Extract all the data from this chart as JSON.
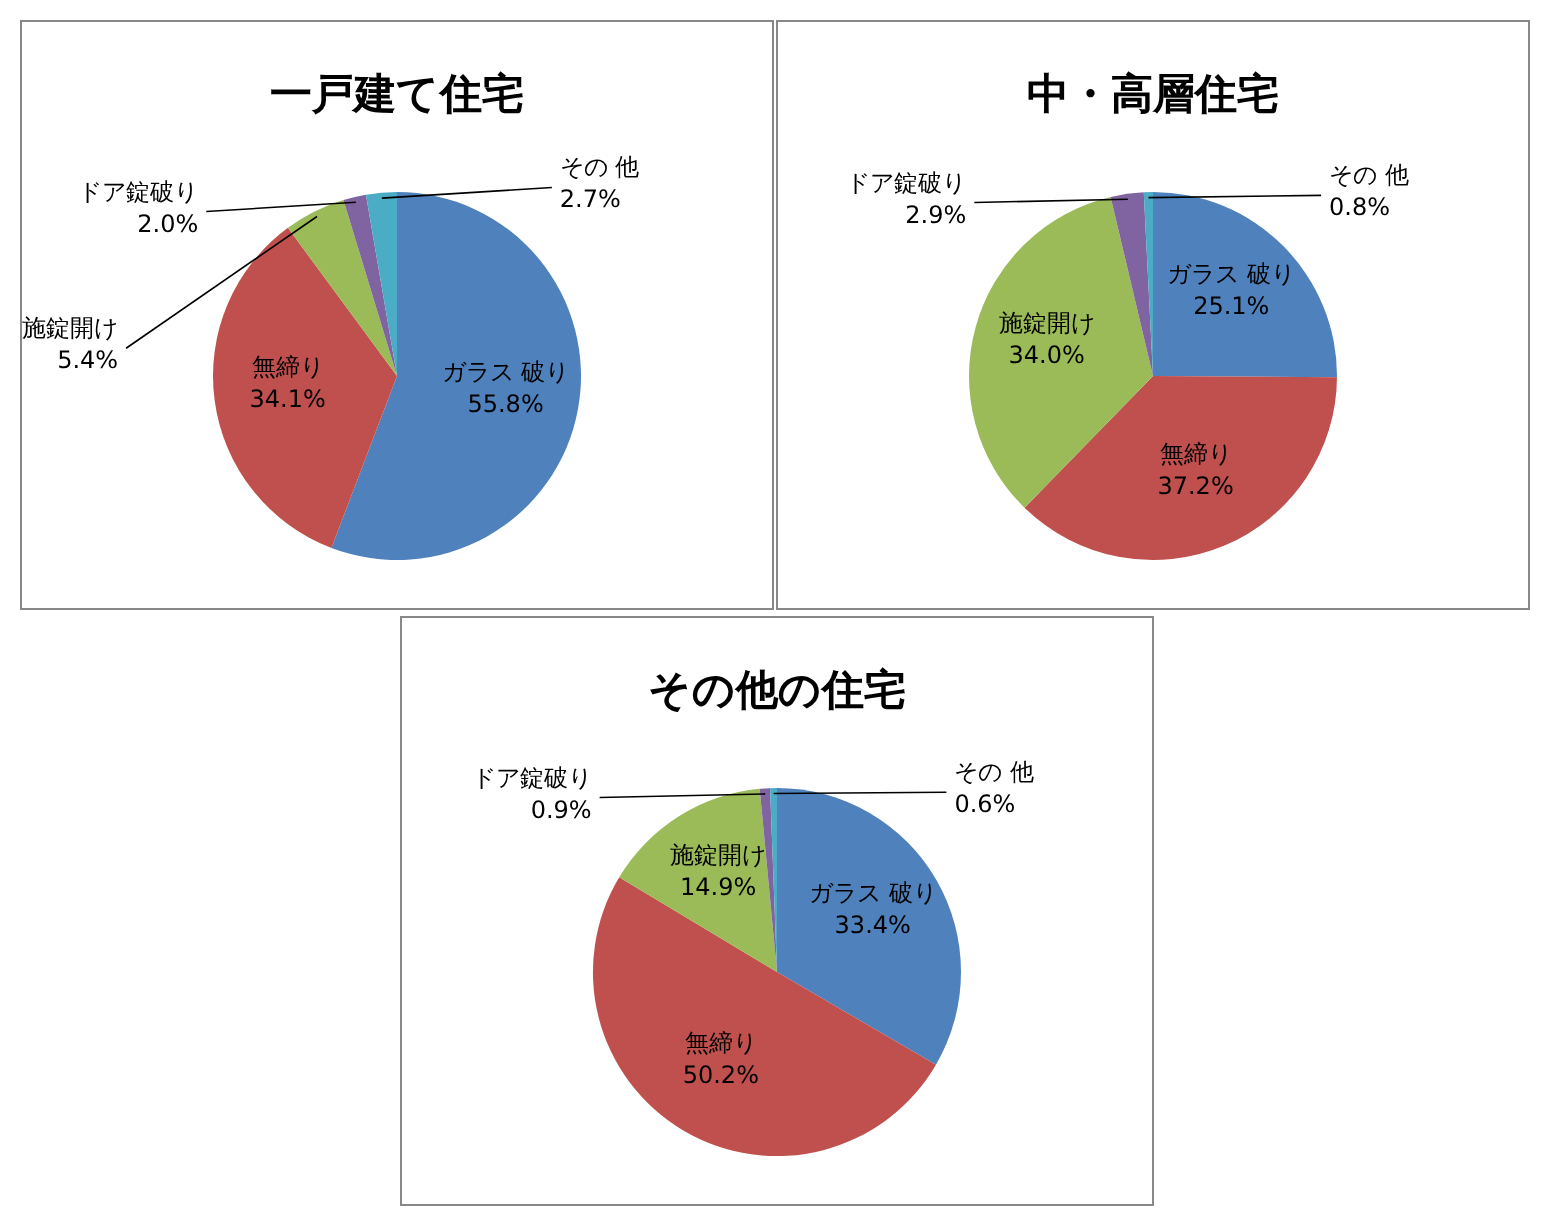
{
  "chart_data": [
    {
      "type": "pie",
      "title": "一戸建て住宅",
      "categories": [
        "ガラス 破り",
        "無締り",
        "施錠開け",
        "ドア錠破り",
        "その 他"
      ],
      "values": [
        55.8,
        34.1,
        5.4,
        2.0,
        2.7
      ],
      "value_labels": [
        "55.8%",
        "34.1%",
        "5.4%",
        "2.0%",
        "2.7%"
      ],
      "colors": [
        "#4f81bd",
        "#c0504d",
        "#9bbb59",
        "#8064a2",
        "#4bacc6"
      ],
      "legend": false
    },
    {
      "type": "pie",
      "title": "中・高層住宅",
      "categories": [
        "ガラス 破り",
        "無締り",
        "施錠開け",
        "ドア錠破り",
        "その 他"
      ],
      "values": [
        25.1,
        37.2,
        34.0,
        2.9,
        0.8
      ],
      "value_labels": [
        "25.1%",
        "37.2%",
        "34.0%",
        "2.9%",
        "0.8%"
      ],
      "colors": [
        "#4f81bd",
        "#c0504d",
        "#9bbb59",
        "#8064a2",
        "#4bacc6"
      ],
      "legend": false
    },
    {
      "type": "pie",
      "title": "その他の住宅",
      "categories": [
        "ガラス 破り",
        "無締り",
        "施錠開け",
        "ドア錠破り",
        "その 他"
      ],
      "values": [
        33.4,
        50.2,
        14.9,
        0.9,
        0.6
      ],
      "value_labels": [
        "33.4%",
        "50.2%",
        "14.9%",
        "0.9%",
        "0.6%"
      ],
      "colors": [
        "#4f81bd",
        "#c0504d",
        "#9bbb59",
        "#8064a2",
        "#4bacc6"
      ],
      "legend": false
    }
  ]
}
